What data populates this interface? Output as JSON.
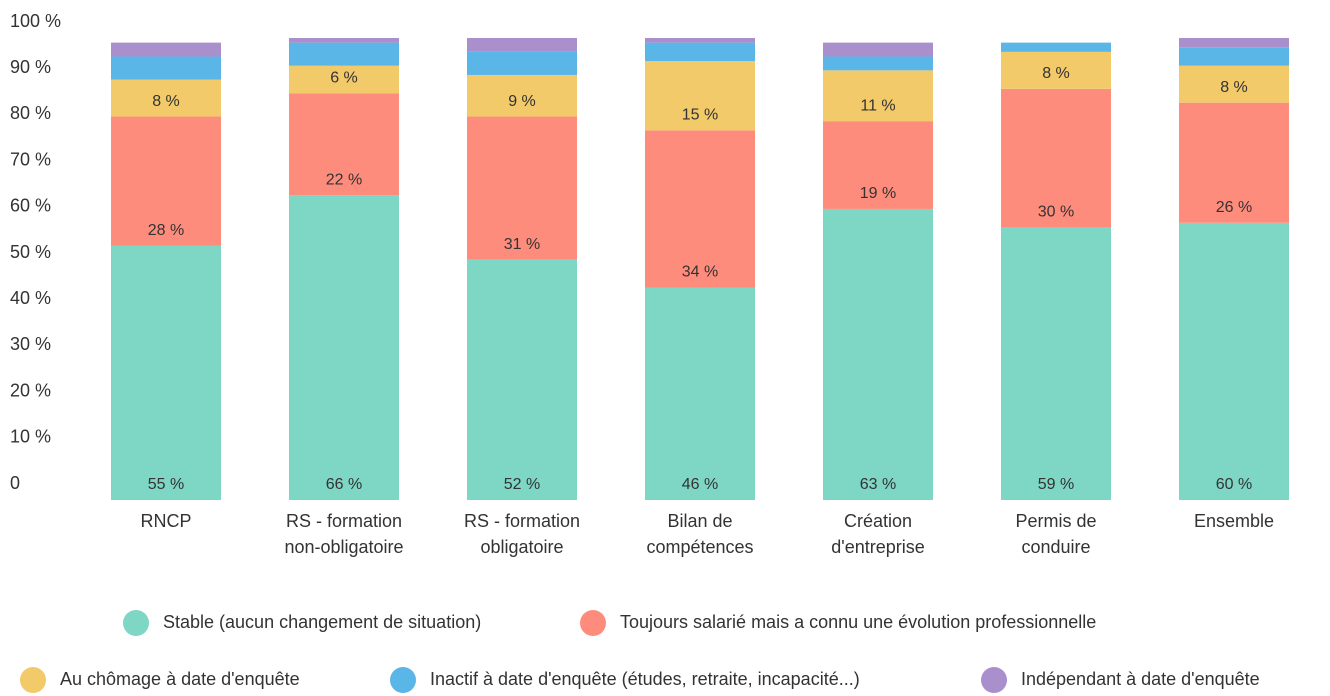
{
  "chart_data": {
    "type": "stacked_bar",
    "categories": [
      [
        "RNCP"
      ],
      [
        "RS - formation",
        "non-obligatoire"
      ],
      [
        "RS - formation",
        "obligatoire"
      ],
      [
        "Bilan de",
        "compétences"
      ],
      [
        "Création",
        "d'entreprise"
      ],
      [
        "Permis de",
        "conduire"
      ],
      [
        "Ensemble"
      ]
    ],
    "series": [
      {
        "name": "Stable (aucun changement de situation)",
        "color": "#7ed6c5",
        "values": [
          55,
          66,
          52,
          46,
          63,
          59,
          60
        ],
        "value_labels": [
          "55 %",
          "66 %",
          "52 %",
          "46 %",
          "63 %",
          "59 %",
          "60 %"
        ]
      },
      {
        "name": "Toujours salarié mais a connu une évolution professionnelle",
        "color": "#fe8c7c",
        "values": [
          28,
          22,
          31,
          34,
          19,
          30,
          26
        ],
        "value_labels": [
          "28 %",
          "22 %",
          "31 %",
          "34 %",
          "19 %",
          "30 %",
          "26 %"
        ]
      },
      {
        "name": "Au chômage à date d'enquête",
        "color": "#f2ca6a",
        "values": [
          8,
          6,
          9,
          15,
          11,
          8,
          8
        ],
        "value_labels": [
          "8 %",
          "6 %",
          "9 %",
          "15 %",
          "11 %",
          "8 %",
          "8 %"
        ]
      },
      {
        "name": "Inactif à date d'enquête (études, retraite, incapacité...)",
        "color": "#5bb6e8",
        "values": [
          5,
          5,
          5,
          4,
          3,
          2,
          4
        ]
      },
      {
        "name": "Indépendant à date d'enquête",
        "color": "#a98fcb",
        "values": [
          3,
          1,
          3,
          1,
          3,
          0,
          2
        ]
      }
    ],
    "ylim": [
      0,
      100
    ],
    "yticks": [
      0,
      {
        "value": 10,
        "label": "10 %"
      },
      {
        "value": 20,
        "label": "20 %"
      },
      {
        "value": 30,
        "label": "30 %"
      },
      {
        "value": 40,
        "label": "40 %"
      },
      {
        "value": 50,
        "label": "50 %"
      },
      {
        "value": 60,
        "label": "60 %"
      },
      {
        "value": 70,
        "label": "70 %"
      },
      {
        "value": 80,
        "label": "80 %"
      },
      {
        "value": 90,
        "label": "90 %"
      },
      {
        "value": 100,
        "label": "100 %"
      }
    ],
    "grid": false,
    "legend": "bottom"
  }
}
